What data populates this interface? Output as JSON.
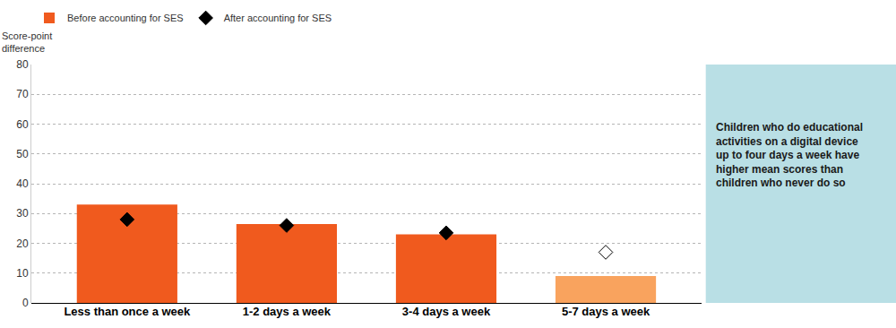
{
  "chart_data": {
    "type": "bar",
    "ylabel": "Score-point difference",
    "categories": [
      "Less than once a week",
      "1-2 days a week",
      "3-4 days a week",
      "5-7 days a week"
    ],
    "series": [
      {
        "name": "Before accounting for SES",
        "type": "bar",
        "colors": [
          "#f05a1e",
          "#f05a1e",
          "#f05a1e",
          "#f9a35e"
        ],
        "values": [
          33,
          26.5,
          23,
          9
        ]
      },
      {
        "name": "After accounting for SES",
        "type": "scatter",
        "marker": "diamond",
        "colors": [
          "#000000",
          "#000000",
          "#000000",
          "#ffffff"
        ],
        "values": [
          28,
          26,
          23.5,
          17
        ]
      }
    ],
    "ylim": [
      0,
      80
    ],
    "yticks": [
      0,
      10,
      20,
      30,
      40,
      50,
      60,
      70,
      80
    ],
    "grid": true,
    "legend": "top-left",
    "annotations": [
      {
        "text": "Children who do educational activities on a digital device up to four days a week have higher mean scores than children who never do so"
      }
    ]
  }
}
